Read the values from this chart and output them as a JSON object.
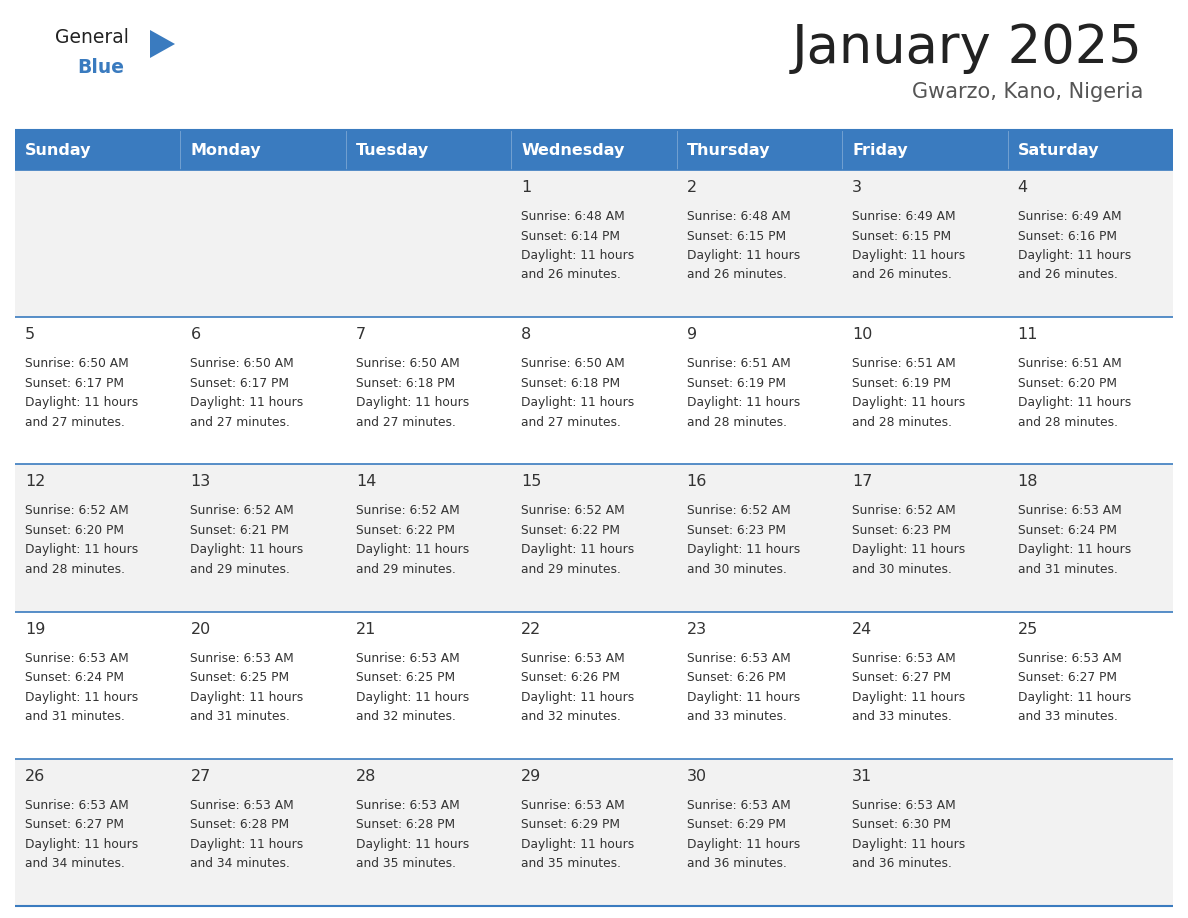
{
  "title": "January 2025",
  "subtitle": "Gwarzo, Kano, Nigeria",
  "days_of_week": [
    "Sunday",
    "Monday",
    "Tuesday",
    "Wednesday",
    "Thursday",
    "Friday",
    "Saturday"
  ],
  "header_bg": "#3a7bbf",
  "header_text": "#ffffff",
  "cell_bg_even": "#f2f2f2",
  "cell_bg_odd": "#ffffff",
  "separator_color": "#3a7bbf",
  "title_color": "#222222",
  "subtitle_color": "#555555",
  "day_num_color": "#333333",
  "info_color": "#333333",
  "logo_black": "#222222",
  "logo_blue": "#3a7bbf",
  "calendar": [
    [
      null,
      null,
      null,
      {
        "day": 1,
        "sunrise": "6:48 AM",
        "sunset": "6:14 PM",
        "daylight": "11 hours and 26 minutes."
      },
      {
        "day": 2,
        "sunrise": "6:48 AM",
        "sunset": "6:15 PM",
        "daylight": "11 hours and 26 minutes."
      },
      {
        "day": 3,
        "sunrise": "6:49 AM",
        "sunset": "6:15 PM",
        "daylight": "11 hours and 26 minutes."
      },
      {
        "day": 4,
        "sunrise": "6:49 AM",
        "sunset": "6:16 PM",
        "daylight": "11 hours and 26 minutes."
      }
    ],
    [
      {
        "day": 5,
        "sunrise": "6:50 AM",
        "sunset": "6:17 PM",
        "daylight": "11 hours and 27 minutes."
      },
      {
        "day": 6,
        "sunrise": "6:50 AM",
        "sunset": "6:17 PM",
        "daylight": "11 hours and 27 minutes."
      },
      {
        "day": 7,
        "sunrise": "6:50 AM",
        "sunset": "6:18 PM",
        "daylight": "11 hours and 27 minutes."
      },
      {
        "day": 8,
        "sunrise": "6:50 AM",
        "sunset": "6:18 PM",
        "daylight": "11 hours and 27 minutes."
      },
      {
        "day": 9,
        "sunrise": "6:51 AM",
        "sunset": "6:19 PM",
        "daylight": "11 hours and 28 minutes."
      },
      {
        "day": 10,
        "sunrise": "6:51 AM",
        "sunset": "6:19 PM",
        "daylight": "11 hours and 28 minutes."
      },
      {
        "day": 11,
        "sunrise": "6:51 AM",
        "sunset": "6:20 PM",
        "daylight": "11 hours and 28 minutes."
      }
    ],
    [
      {
        "day": 12,
        "sunrise": "6:52 AM",
        "sunset": "6:20 PM",
        "daylight": "11 hours and 28 minutes."
      },
      {
        "day": 13,
        "sunrise": "6:52 AM",
        "sunset": "6:21 PM",
        "daylight": "11 hours and 29 minutes."
      },
      {
        "day": 14,
        "sunrise": "6:52 AM",
        "sunset": "6:22 PM",
        "daylight": "11 hours and 29 minutes."
      },
      {
        "day": 15,
        "sunrise": "6:52 AM",
        "sunset": "6:22 PM",
        "daylight": "11 hours and 29 minutes."
      },
      {
        "day": 16,
        "sunrise": "6:52 AM",
        "sunset": "6:23 PM",
        "daylight": "11 hours and 30 minutes."
      },
      {
        "day": 17,
        "sunrise": "6:52 AM",
        "sunset": "6:23 PM",
        "daylight": "11 hours and 30 minutes."
      },
      {
        "day": 18,
        "sunrise": "6:53 AM",
        "sunset": "6:24 PM",
        "daylight": "11 hours and 31 minutes."
      }
    ],
    [
      {
        "day": 19,
        "sunrise": "6:53 AM",
        "sunset": "6:24 PM",
        "daylight": "11 hours and 31 minutes."
      },
      {
        "day": 20,
        "sunrise": "6:53 AM",
        "sunset": "6:25 PM",
        "daylight": "11 hours and 31 minutes."
      },
      {
        "day": 21,
        "sunrise": "6:53 AM",
        "sunset": "6:25 PM",
        "daylight": "11 hours and 32 minutes."
      },
      {
        "day": 22,
        "sunrise": "6:53 AM",
        "sunset": "6:26 PM",
        "daylight": "11 hours and 32 minutes."
      },
      {
        "day": 23,
        "sunrise": "6:53 AM",
        "sunset": "6:26 PM",
        "daylight": "11 hours and 33 minutes."
      },
      {
        "day": 24,
        "sunrise": "6:53 AM",
        "sunset": "6:27 PM",
        "daylight": "11 hours and 33 minutes."
      },
      {
        "day": 25,
        "sunrise": "6:53 AM",
        "sunset": "6:27 PM",
        "daylight": "11 hours and 33 minutes."
      }
    ],
    [
      {
        "day": 26,
        "sunrise": "6:53 AM",
        "sunset": "6:27 PM",
        "daylight": "11 hours and 34 minutes."
      },
      {
        "day": 27,
        "sunrise": "6:53 AM",
        "sunset": "6:28 PM",
        "daylight": "11 hours and 34 minutes."
      },
      {
        "day": 28,
        "sunrise": "6:53 AM",
        "sunset": "6:28 PM",
        "daylight": "11 hours and 35 minutes."
      },
      {
        "day": 29,
        "sunrise": "6:53 AM",
        "sunset": "6:29 PM",
        "daylight": "11 hours and 35 minutes."
      },
      {
        "day": 30,
        "sunrise": "6:53 AM",
        "sunset": "6:29 PM",
        "daylight": "11 hours and 36 minutes."
      },
      {
        "day": 31,
        "sunrise": "6:53 AM",
        "sunset": "6:30 PM",
        "daylight": "11 hours and 36 minutes."
      },
      null
    ]
  ]
}
